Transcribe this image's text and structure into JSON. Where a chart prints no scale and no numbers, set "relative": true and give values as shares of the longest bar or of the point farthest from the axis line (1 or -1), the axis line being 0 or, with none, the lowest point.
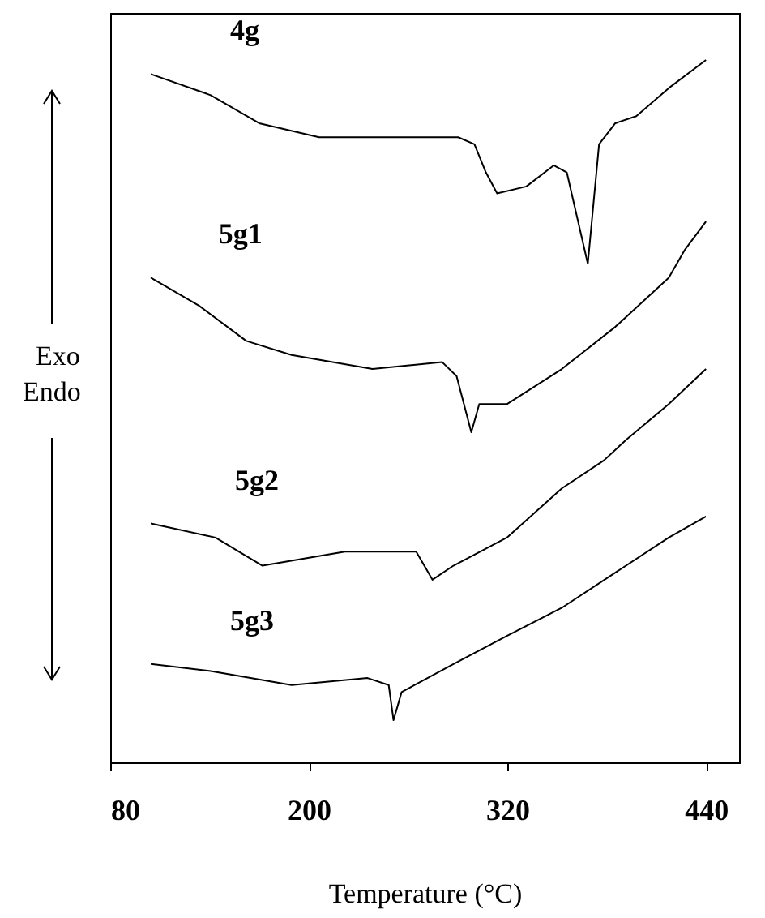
{
  "chart_data": {
    "type": "line",
    "relative": true,
    "xlabel": "Temperature (°C)",
    "xlim": [
      80,
      460
    ],
    "xticks": [
      80,
      200,
      320,
      440
    ],
    "line_style": "solid",
    "annotations": [
      "Exo",
      "Endo"
    ],
    "series": [
      {
        "name": "4g",
        "color": "#000000",
        "x": [
          104.5,
          140.7,
          170,
          206.2,
          255.1,
          290.3,
          300.1,
          307,
          313.8,
          331.5,
          348,
          355.9,
          368.6,
          375.4,
          385.2,
          397.9,
          417.5,
          440
        ],
        "values": [
          0.98,
          0.95,
          0.91,
          0.89,
          0.89,
          0.89,
          0.88,
          0.84,
          0.81,
          0.82,
          0.85,
          0.84,
          0.71,
          0.88,
          0.91,
          0.92,
          0.96,
          1
        ]
      },
      {
        "name": "5g1",
        "color": "#000000",
        "x": [
          104.5,
          133.8,
          162.2,
          189.6,
          238.5,
          280.5,
          289.3,
          298.2,
          303,
          319.7,
          352.9,
          385.2,
          417.5,
          427.3,
          440
        ],
        "values": [
          0.69,
          0.65,
          0.6,
          0.58,
          0.56,
          0.57,
          0.55,
          0.47,
          0.51,
          0.51,
          0.56,
          0.62,
          0.69,
          0.73,
          0.77
        ]
      },
      {
        "name": "5g2",
        "color": "#000000",
        "x": [
          104.5,
          143.6,
          172,
          221.8,
          264.9,
          274.7,
          287.4,
          319.7,
          352.9,
          378.4,
          392.1,
          417.5,
          440
        ],
        "values": [
          0.34,
          0.32,
          0.28,
          0.3,
          0.3,
          0.26,
          0.28,
          0.32,
          0.39,
          0.43,
          0.46,
          0.51,
          0.56
        ]
      },
      {
        "name": "5g3",
        "color": "#000000",
        "x": [
          104.5,
          140.7,
          189.6,
          235.5,
          248.3,
          251.2,
          256.1,
          287.4,
          319.7,
          352.9,
          385.2,
          417.5,
          440
        ],
        "values": [
          0.14,
          0.13,
          0.11,
          0.12,
          0.11,
          0.06,
          0.1,
          0.14,
          0.18,
          0.22,
          0.27,
          0.32,
          0.35
        ]
      }
    ]
  }
}
